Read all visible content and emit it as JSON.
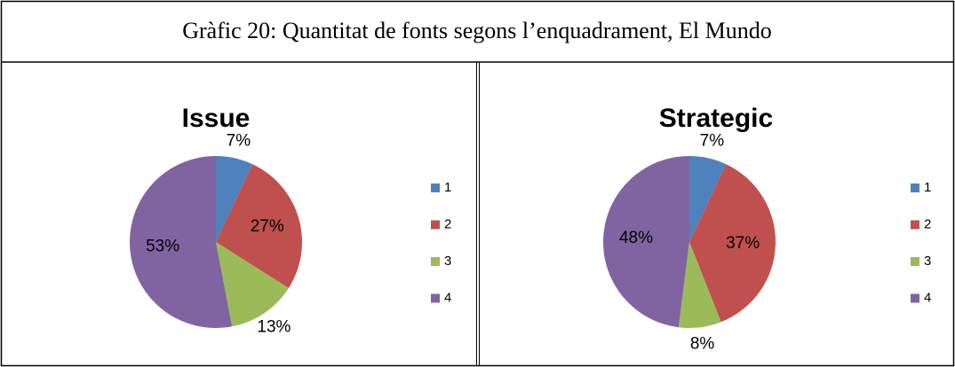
{
  "caption": "Gràfic 20: Quantitat de fonts segons l’enquadrament, El Mundo",
  "chart_data": [
    {
      "type": "pie",
      "title": "Issue",
      "categories": [
        "1",
        "2",
        "3",
        "4"
      ],
      "values": [
        7,
        27,
        13,
        53
      ],
      "value_labels": [
        "7%",
        "27%",
        "13%",
        "53%"
      ],
      "colors": [
        "#4f81bd",
        "#c0504d",
        "#9bbb59",
        "#8064a2"
      ],
      "legend": "right"
    },
    {
      "type": "pie",
      "title": "Strategic",
      "categories": [
        "1",
        "2",
        "3",
        "4"
      ],
      "values": [
        7,
        37,
        8,
        48
      ],
      "value_labels": [
        "7%",
        "37%",
        "8%",
        "48%"
      ],
      "colors": [
        "#4f81bd",
        "#c0504d",
        "#9bbb59",
        "#8064a2"
      ],
      "legend": "right"
    }
  ]
}
